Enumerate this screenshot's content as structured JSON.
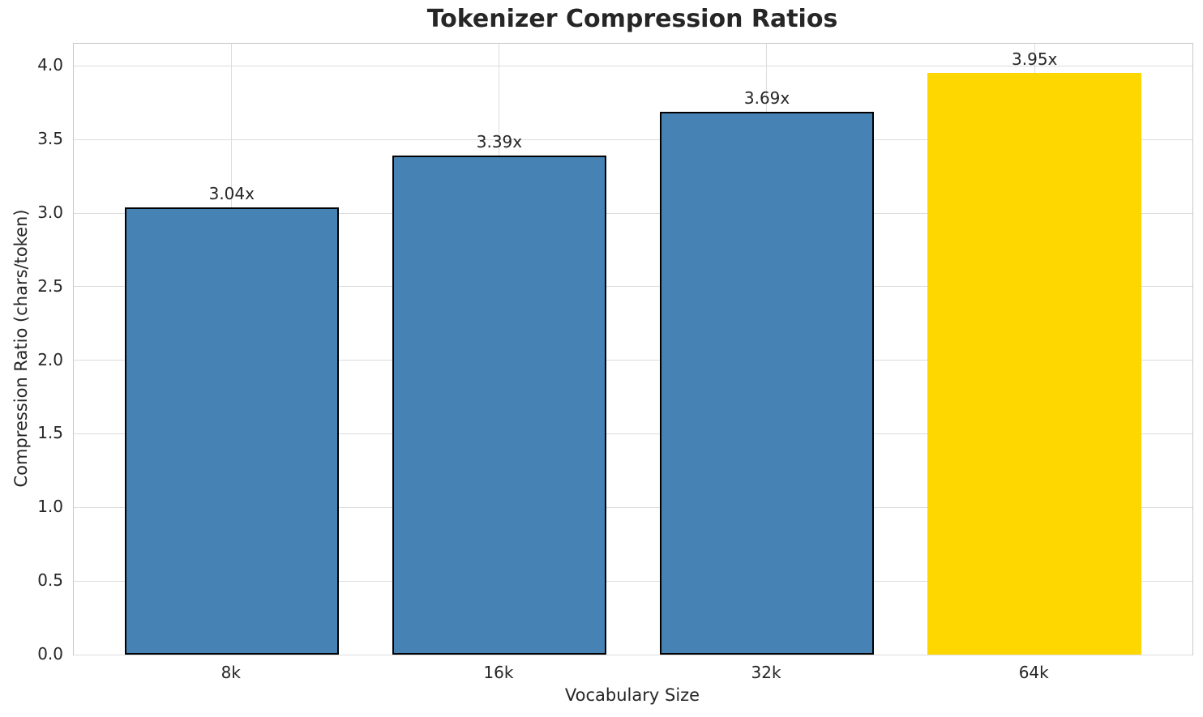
{
  "chart_data": {
    "type": "bar",
    "title": "Tokenizer Compression Ratios",
    "xlabel": "Vocabulary Size",
    "ylabel": "Compression Ratio (chars/token)",
    "categories": [
      "8k",
      "16k",
      "32k",
      "64k"
    ],
    "values": [
      3.04,
      3.39,
      3.69,
      3.95
    ],
    "bar_value_labels": [
      "3.04x",
      "3.39x",
      "3.69x",
      "3.95x"
    ],
    "bar_colors": [
      "#4682B4",
      "#4682B4",
      "#4682B4",
      "#FFD700"
    ],
    "bar_edge_colors": [
      "#000000",
      "#000000",
      "#000000",
      "none"
    ],
    "bar_width_fraction": 0.8,
    "ylim": [
      0,
      4.15
    ],
    "yticks": [
      0.0,
      0.5,
      1.0,
      1.5,
      2.0,
      2.5,
      3.0,
      3.5,
      4.0
    ],
    "ytick_labels": [
      "0.0",
      "0.5",
      "1.0",
      "1.5",
      "2.0",
      "2.5",
      "3.0",
      "3.5",
      "4.0"
    ],
    "grid": true,
    "legend_position": "none"
  },
  "style_colors": {
    "grid": "#dcdcdc",
    "spine": "#c8c8c8",
    "text": "#262626",
    "background": "#ffffff"
  }
}
